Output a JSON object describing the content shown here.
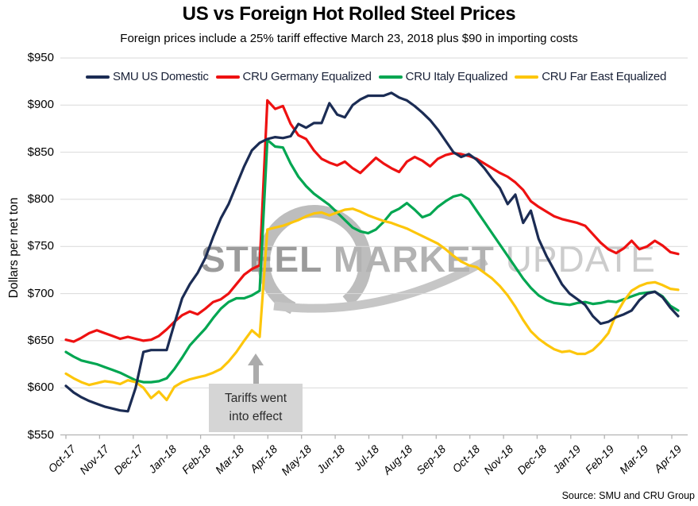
{
  "header": {
    "title": "US vs Foreign Hot Rolled Steel Prices",
    "subtitle": "Foreign prices include a 25% tariff effective March 23, 2018 plus $90 in importing costs"
  },
  "y_axis": {
    "title": "Dollars per net ton",
    "tick_labels": [
      "$950",
      "$900",
      "$850",
      "$800",
      "$750",
      "$700",
      "$650",
      "$600",
      "$550"
    ]
  },
  "x_axis": {
    "tick_labels": [
      "Oct-17",
      "Nov-17",
      "Dec-17",
      "Jan-18",
      "Feb-18",
      "Mar-18",
      "Apr-18",
      "May-18",
      "Jun-18",
      "Jul-18",
      "Aug-18",
      "Sep-18",
      "Oct-18",
      "Nov-18",
      "Dec-18",
      "Jan-19",
      "Feb-19",
      "Mar-19",
      "Apr-19"
    ]
  },
  "legend": {
    "items": [
      {
        "label": "SMU US Domestic",
        "color": "#1b2c54"
      },
      {
        "label": "CRU Germany Equalized",
        "color": "#ee1111"
      },
      {
        "label": "CRU Italy Equalized",
        "color": "#00a651"
      },
      {
        "label": "CRU Far East Equalized",
        "color": "#fdc60b"
      }
    ]
  },
  "annotation": {
    "line1": "Tariffs went",
    "line2": "into effect"
  },
  "watermark": {
    "word1": "STEEL",
    "word2": "MARKET",
    "word3": "UPDATE"
  },
  "footer": {
    "source": "Source: SMU and CRU Group"
  },
  "colors": {
    "gridline": "#d9d9d9",
    "axis": "#b3b3b3",
    "annotation_gray": "#ababab"
  },
  "chart_data": {
    "type": "line",
    "title": "US vs Foreign Hot Rolled Steel Prices",
    "subtitle": "Foreign prices include a 25% tariff effective March 23, 2018 plus $90 in importing costs",
    "ylabel": "Dollars per net ton",
    "ylim": [
      550,
      950
    ],
    "y_tick_step": 50,
    "grid": "horizontal",
    "legend_position": "top",
    "x_resolution": "weekly",
    "x_tick_labels": [
      "Oct-17",
      "Nov-17",
      "Dec-17",
      "Jan-18",
      "Feb-18",
      "Mar-18",
      "Apr-18",
      "May-18",
      "Jun-18",
      "Jul-18",
      "Aug-18",
      "Sep-18",
      "Oct-18",
      "Nov-18",
      "Dec-18",
      "Jan-19",
      "Feb-19",
      "Mar-19",
      "Apr-19"
    ],
    "annotations": [
      {
        "text": "Tariffs went into effect",
        "x_label": "Mar-18",
        "note": "vertical jump in foreign series on Mar 23, 2018"
      }
    ],
    "draw_order": [
      1,
      2,
      3,
      0
    ],
    "series": [
      {
        "name": "SMU US Domestic",
        "color": "#1b2c54",
        "values": [
          602,
          595,
          590,
          586,
          583,
          580,
          578,
          576,
          575,
          600,
          638,
          640,
          640,
          640,
          668,
          695,
          710,
          722,
          738,
          760,
          780,
          795,
          815,
          835,
          852,
          860,
          864,
          866,
          865,
          867,
          880,
          876,
          881,
          881,
          902,
          890,
          887,
          900,
          906,
          910,
          910,
          910,
          913,
          908,
          905,
          899,
          892,
          884,
          874,
          862,
          850,
          845,
          848,
          842,
          833,
          822,
          812,
          795,
          805,
          775,
          788,
          758,
          740,
          725,
          710,
          700,
          694,
          688,
          676,
          668,
          670,
          675,
          678,
          682,
          693,
          700,
          702,
          696,
          685,
          676
        ]
      },
      {
        "name": "CRU Germany Equalized",
        "color": "#ee1111",
        "values": [
          651,
          649,
          653,
          658,
          661,
          658,
          655,
          652,
          654,
          652,
          650,
          651,
          655,
          662,
          670,
          677,
          681,
          678,
          684,
          691,
          694,
          700,
          710,
          720,
          726,
          730,
          905,
          896,
          899,
          880,
          868,
          864,
          852,
          843,
          839,
          836,
          840,
          833,
          828,
          836,
          844,
          838,
          833,
          829,
          840,
          845,
          841,
          835,
          843,
          847,
          849,
          848,
          846,
          843,
          838,
          833,
          828,
          824,
          818,
          810,
          798,
          792,
          787,
          782,
          779,
          777,
          775,
          772,
          763,
          754,
          747,
          743,
          748,
          756,
          747,
          750,
          756,
          751,
          744,
          742
        ]
      },
      {
        "name": "CRU Italy Equalized",
        "color": "#00a651",
        "values": [
          638,
          633,
          629,
          627,
          625,
          622,
          619,
          616,
          612,
          608,
          606,
          606,
          607,
          610,
          620,
          632,
          645,
          654,
          663,
          674,
          684,
          691,
          695,
          695,
          698,
          703,
          863,
          856,
          855,
          838,
          824,
          814,
          806,
          800,
          794,
          786,
          778,
          770,
          766,
          764,
          768,
          776,
          786,
          790,
          796,
          789,
          781,
          784,
          792,
          798,
          803,
          805,
          800,
          788,
          776,
          764,
          752,
          740,
          728,
          716,
          706,
          698,
          693,
          690,
          689,
          688,
          690,
          691,
          689,
          690,
          692,
          691,
          694,
          697,
          700,
          701,
          702,
          697,
          687,
          682
        ]
      },
      {
        "name": "CRU Far East Equalized",
        "color": "#fdc60b",
        "values": [
          615,
          610,
          606,
          603,
          605,
          607,
          606,
          604,
          608,
          606,
          600,
          589,
          596,
          587,
          601,
          606,
          609,
          611,
          613,
          616,
          620,
          628,
          638,
          650,
          661,
          654,
          768,
          770,
          772,
          775,
          778,
          782,
          785,
          786,
          783,
          786,
          789,
          790,
          787,
          783,
          780,
          777,
          775,
          772,
          769,
          765,
          761,
          757,
          753,
          747,
          740,
          734,
          730,
          728,
          722,
          716,
          708,
          698,
          686,
          672,
          660,
          652,
          646,
          641,
          638,
          639,
          636,
          636,
          640,
          648,
          658,
          678,
          692,
          703,
          708,
          711,
          712,
          709,
          705,
          704
        ]
      }
    ]
  }
}
